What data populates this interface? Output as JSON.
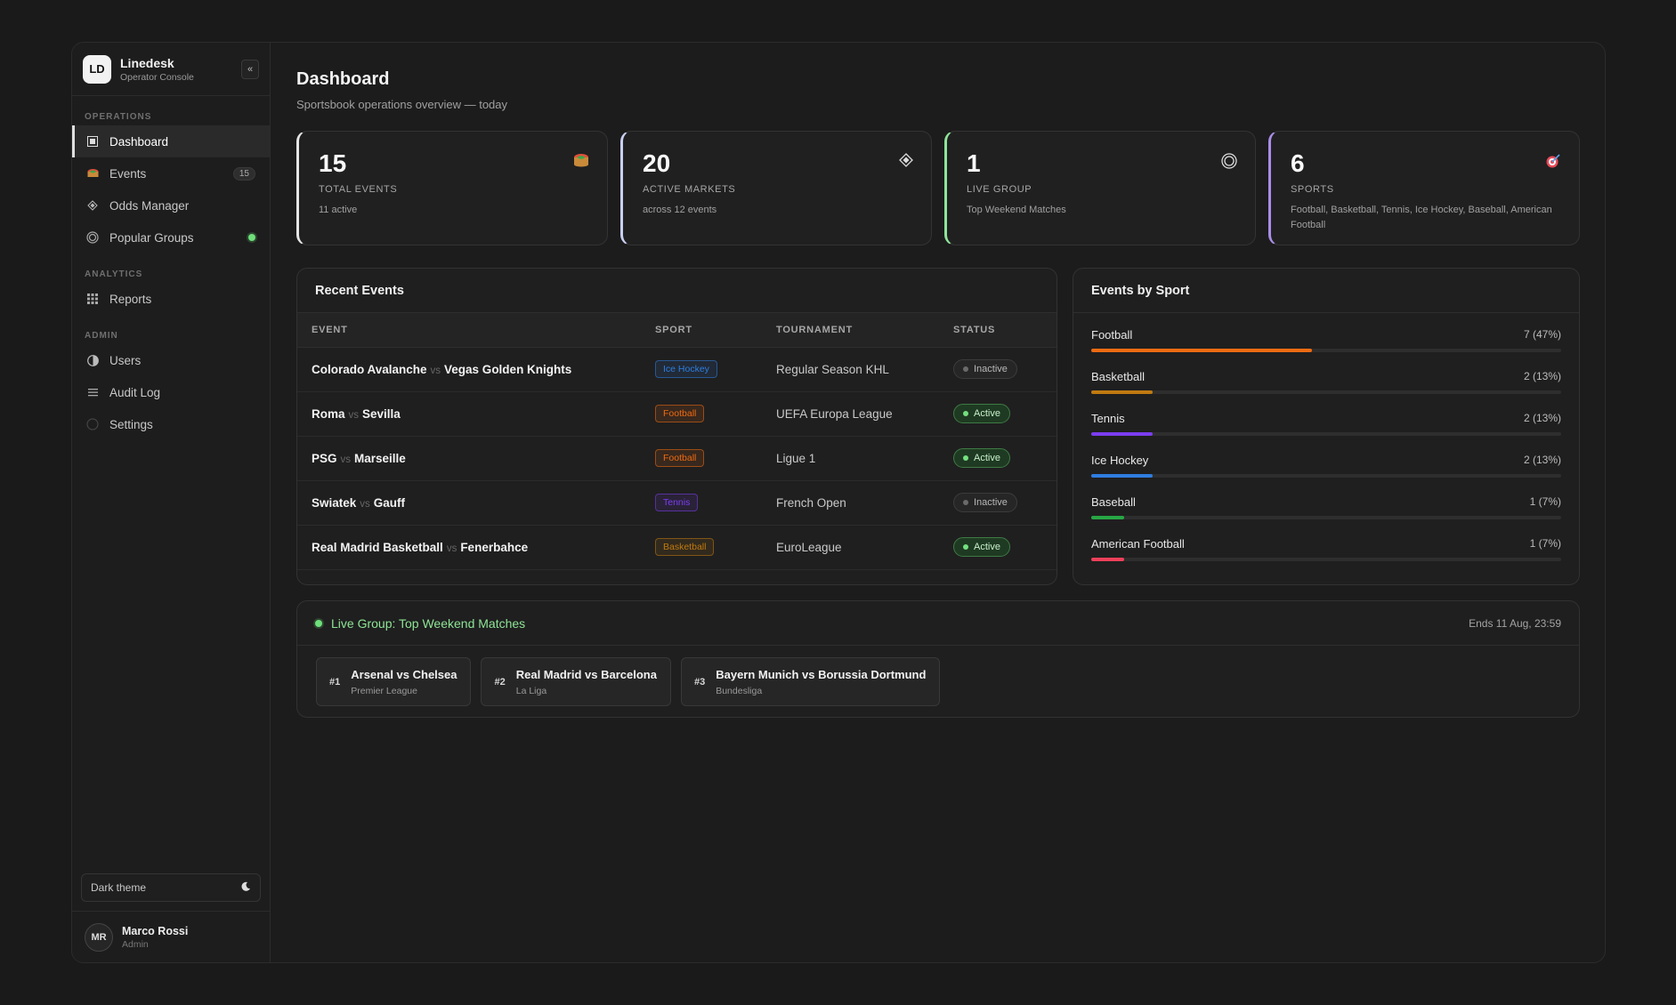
{
  "brand": {
    "logo": "LD",
    "name": "Linedesk",
    "subtitle": "Operator Console",
    "collapse_label": "«"
  },
  "nav": {
    "sections": {
      "operations": "OPERATIONS",
      "analytics": "ANALYTICS",
      "admin": "ADMIN"
    },
    "items": [
      {
        "label": "Dashboard",
        "icon": "dashboard-icon",
        "active": true
      },
      {
        "label": "Events",
        "icon": "stadium-icon",
        "badge": "15"
      },
      {
        "label": "Odds Manager",
        "icon": "diamond-icon"
      },
      {
        "label": "Popular Groups",
        "icon": "target-icon"
      },
      {
        "label": "Reports",
        "icon": "grid-icon"
      },
      {
        "label": "Users",
        "icon": "half-circle-icon"
      },
      {
        "label": "Audit Log",
        "icon": "list-icon"
      },
      {
        "label": "Settings",
        "icon": "circle-icon"
      }
    ]
  },
  "theme_toggle": {
    "label": "Dark theme",
    "icon": "moon-icon"
  },
  "user": {
    "initials": "MR",
    "name": "Marco Rossi",
    "role": "Admin"
  },
  "page": {
    "title": "Dashboard",
    "subtitle": "Sportsbook operations overview — today"
  },
  "stats": [
    {
      "value": "15",
      "label": "TOTAL EVENTS",
      "sub": "11 active",
      "icon": "stadium-icon",
      "accent": "#e5e5e5"
    },
    {
      "value": "20",
      "label": "ACTIVE MARKETS",
      "sub": "across 12 events",
      "icon": "diamond-icon",
      "accent": "#c9d0f2"
    },
    {
      "value": "1",
      "label": "LIVE GROUP",
      "sub": "Top Weekend Matches",
      "icon": "target-icon",
      "accent": "#8fe39a"
    },
    {
      "value": "6",
      "label": "SPORTS",
      "sub": "Football, Basketball, Tennis, Ice Hockey, Baseball, American Football",
      "icon": "dart-icon",
      "accent": "#a98de8"
    }
  ],
  "recent": {
    "title": "Recent Events",
    "columns": [
      "EVENT",
      "SPORT",
      "TOURNAMENT",
      "STATUS"
    ],
    "vs_label": "vs",
    "rows": [
      {
        "home": "Colorado Avalanche",
        "away": "Vegas Golden Knights",
        "sport": "Ice Hockey",
        "tournament": "Regular Season KHL",
        "status": "Inactive"
      },
      {
        "home": "Roma",
        "away": "Sevilla",
        "sport": "Football",
        "tournament": "UEFA Europa League",
        "status": "Active"
      },
      {
        "home": "PSG",
        "away": "Marseille",
        "sport": "Football",
        "tournament": "Ligue 1",
        "status": "Active"
      },
      {
        "home": "Swiatek",
        "away": "Gauff",
        "sport": "Tennis",
        "tournament": "French Open",
        "status": "Inactive"
      },
      {
        "home": "Real Madrid Basketball",
        "away": "Fenerbahce",
        "sport": "Basketball",
        "tournament": "EuroLeague",
        "status": "Active"
      }
    ]
  },
  "sport_colors": {
    "Ice Hockey": "#2f7de0",
    "Football": "#ee6b12",
    "Tennis": "#7b3df0",
    "Basketball": "#c07a10",
    "Baseball": "#27a745",
    "American Football": "#f0405a"
  },
  "by_sport": {
    "title": "Events by Sport",
    "items": [
      {
        "name": "Football",
        "value": "7 (47%)",
        "fraction": 0.47
      },
      {
        "name": "Basketball",
        "value": "2 (13%)",
        "fraction": 0.13
      },
      {
        "name": "Tennis",
        "value": "2 (13%)",
        "fraction": 0.13
      },
      {
        "name": "Ice Hockey",
        "value": "2 (13%)",
        "fraction": 0.13
      },
      {
        "name": "Baseball",
        "value": "1 (7%)",
        "fraction": 0.07
      },
      {
        "name": "American Football",
        "value": "1 (7%)",
        "fraction": 0.07
      }
    ]
  },
  "live_group": {
    "title": "Live Group: Top Weekend Matches",
    "ends": "Ends 11 Aug, 23:59",
    "matches": [
      {
        "rank": "#1",
        "name": "Arsenal vs Chelsea",
        "league": "Premier League"
      },
      {
        "rank": "#2",
        "name": "Real Madrid vs Barcelona",
        "league": "La Liga"
      },
      {
        "rank": "#3",
        "name": "Bayern Munich vs Borussia Dortmund",
        "league": "Bundesliga"
      }
    ]
  }
}
